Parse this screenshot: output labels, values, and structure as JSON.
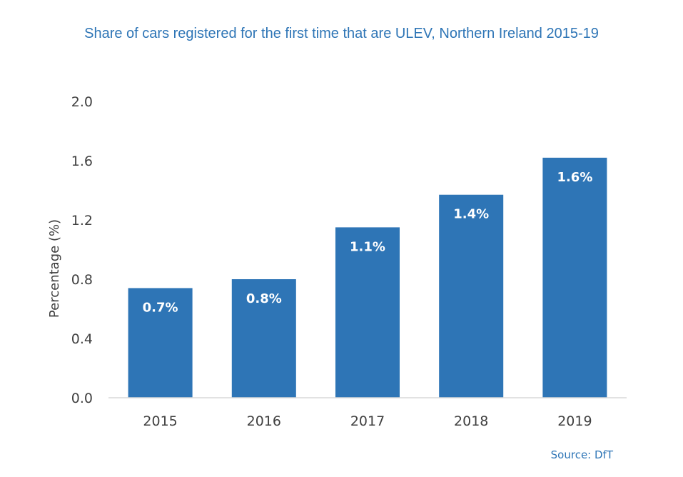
{
  "chart_data": {
    "type": "bar",
    "title": "Share of cars registered for the first time that are ULEV, Northern Ireland 2015-19",
    "ylabel": "Percentage (%)",
    "xlabel": "",
    "categories": [
      "2015",
      "2016",
      "2017",
      "2018",
      "2019"
    ],
    "values": [
      0.74,
      0.8,
      1.15,
      1.37,
      1.62
    ],
    "data_labels": [
      "0.7%",
      "0.8%",
      "1.1%",
      "1.4%",
      "1.6%"
    ],
    "ylim": [
      0,
      2.0
    ],
    "yticks": [
      "0.0",
      "0.4",
      "0.8",
      "1.2",
      "1.6",
      "2.0"
    ],
    "grid": false,
    "bar_color": "#2E75B6",
    "title_color": "#2E75B6"
  },
  "source": "Source: DfT"
}
